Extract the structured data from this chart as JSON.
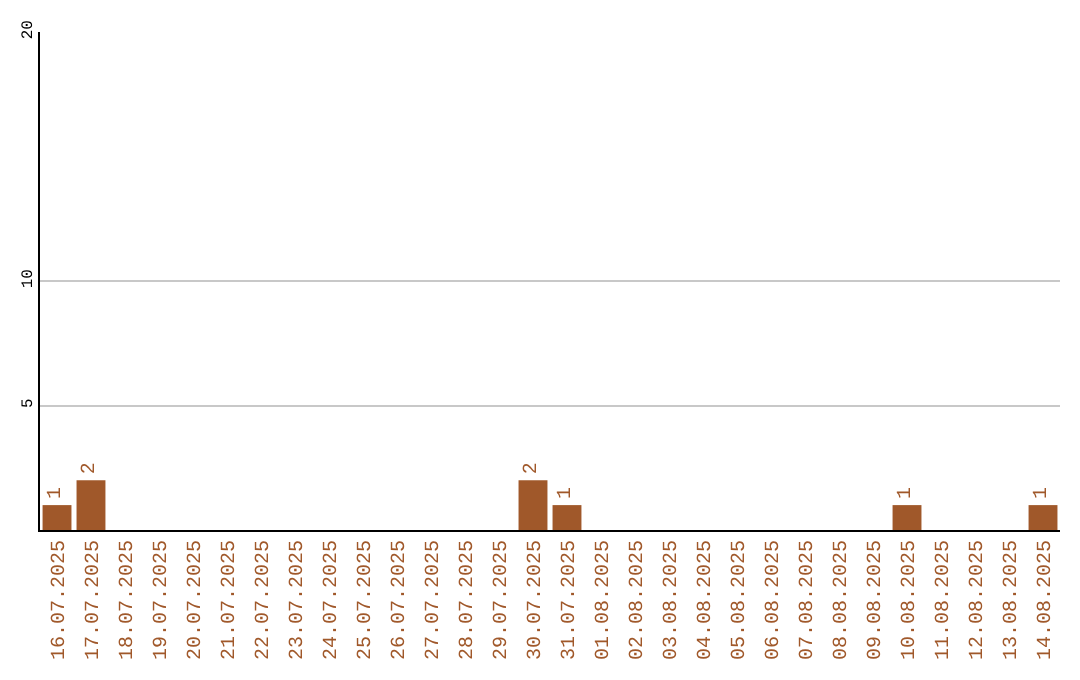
{
  "chart_data": {
    "type": "bar",
    "categories": [
      "16.07.2025",
      "17.07.2025",
      "18.07.2025",
      "19.07.2025",
      "20.07.2025",
      "21.07.2025",
      "22.07.2025",
      "23.07.2025",
      "24.07.2025",
      "25.07.2025",
      "26.07.2025",
      "27.07.2025",
      "28.07.2025",
      "29.07.2025",
      "30.07.2025",
      "31.07.2025",
      "01.08.2025",
      "02.08.2025",
      "03.08.2025",
      "04.08.2025",
      "05.08.2025",
      "06.08.2025",
      "07.08.2025",
      "08.08.2025",
      "09.08.2025",
      "10.08.2025",
      "11.08.2025",
      "12.08.2025",
      "13.08.2025",
      "14.08.2025"
    ],
    "values": [
      1,
      2,
      0,
      0,
      0,
      0,
      0,
      0,
      0,
      0,
      0,
      0,
      0,
      0,
      2,
      1,
      0,
      0,
      0,
      0,
      0,
      0,
      0,
      0,
      0,
      1,
      0,
      0,
      0,
      1
    ],
    "value_labels": [
      "1",
      "2",
      null,
      null,
      null,
      null,
      null,
      null,
      null,
      null,
      null,
      null,
      null,
      null,
      "2",
      "1",
      null,
      null,
      null,
      null,
      null,
      null,
      null,
      null,
      null,
      "1",
      null,
      null,
      null,
      "1"
    ],
    "color": "#a0582a",
    "ylim": [
      0,
      20
    ],
    "yticks": [
      5,
      10,
      20
    ],
    "grid": "y",
    "legend": false
  }
}
